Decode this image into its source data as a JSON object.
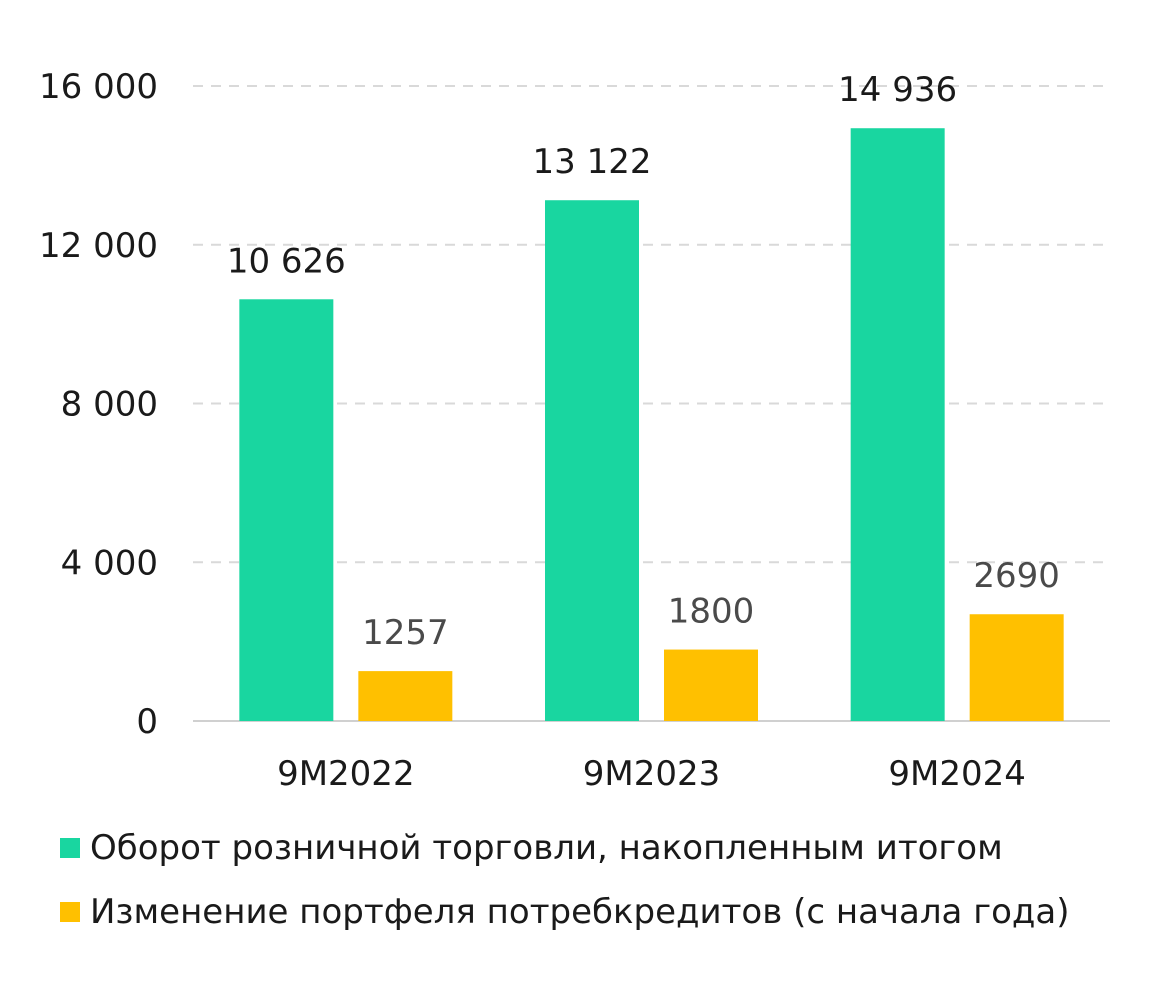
{
  "chart_data": {
    "type": "bar",
    "categories": [
      "9M2022",
      "9M2023",
      "9M2024"
    ],
    "series": [
      {
        "name": "Оборот розничной торговли, накопленным итогом",
        "values": [
          10626,
          13122,
          14936
        ],
        "labels": [
          "10 626",
          "13 122",
          "14 936"
        ],
        "color": "#19d6a0"
      },
      {
        "name": "Изменение портфеля потребкредитов (с начала года)",
        "values": [
          1257,
          1800,
          2690
        ],
        "labels": [
          "1257",
          "1800",
          "2690"
        ],
        "color": "#ffc000"
      }
    ],
    "ylim": [
      0,
      16000
    ],
    "yticks": [
      0,
      4000,
      8000,
      12000,
      16000
    ],
    "ytick_labels": [
      "0",
      "4 000",
      "8 000",
      "12 000",
      "16 000"
    ],
    "grid": true,
    "grid_style": "dashed",
    "legend_position": "bottom",
    "title": "",
    "xlabel": "",
    "ylabel": ""
  }
}
